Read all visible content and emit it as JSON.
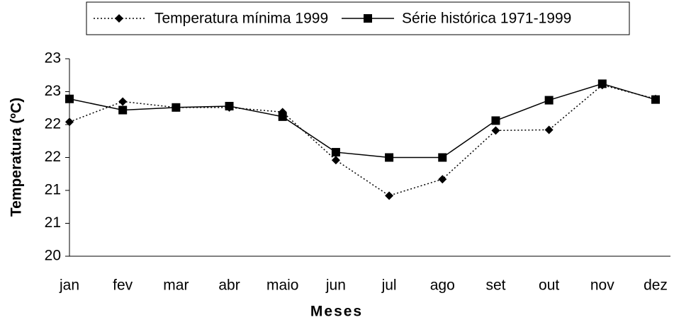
{
  "chart_data": {
    "type": "line",
    "x_label": "Meses",
    "y_label": "Temperatura  (ºC)",
    "categories": [
      "jan",
      "fev",
      "mar",
      "abr",
      "maio",
      "jun",
      "jul",
      "ago",
      "set",
      "out",
      "nov",
      "dez"
    ],
    "series": [
      {
        "name": "Temperatura mínima 1999",
        "color": "#000000",
        "dash": "dotted",
        "marker": "diamond",
        "values": [
          22.04,
          22.35,
          22.26,
          22.26,
          22.19,
          21.46,
          20.92,
          21.17,
          21.91,
          21.92,
          22.6,
          22.39
        ]
      },
      {
        "name": "Série histórica 1971-1999",
        "color": "#000000",
        "dash": "solid",
        "marker": "square",
        "values": [
          22.39,
          22.22,
          22.26,
          22.28,
          22.12,
          21.58,
          21.5,
          21.5,
          22.06,
          22.37,
          22.62,
          22.38
        ]
      }
    ],
    "ylim": [
      20,
      23
    ],
    "yticks": [
      20,
      {
        "value": 20.5,
        "label": "21"
      },
      21,
      {
        "value": 21.5,
        "label": "22"
      },
      22,
      {
        "value": 22.5,
        "label": "23"
      },
      23
    ],
    "legend": "top"
  }
}
